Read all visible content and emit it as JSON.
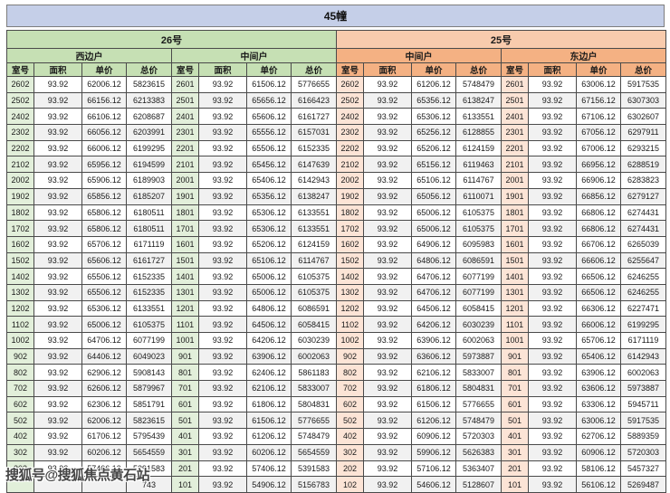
{
  "title": "45幢",
  "watermark": {
    "text": "搜狐号@搜狐焦点黄石站"
  },
  "table": {
    "buildings": [
      "26号",
      "25号"
    ],
    "unit_types": [
      "西边户",
      "中间户",
      "中间户",
      "东边户"
    ],
    "column_headers": [
      "室号",
      "面积",
      "单价",
      "总价"
    ],
    "rows": [
      [
        "2602",
        "93.92",
        "62006.12",
        "5823615",
        "2601",
        "93.92",
        "61506.12",
        "5776655",
        "2602",
        "93.92",
        "61206.12",
        "5748479",
        "2601",
        "93.92",
        "63006.12",
        "5917535"
      ],
      [
        "2502",
        "93.92",
        "66156.12",
        "6213383",
        "2501",
        "93.92",
        "65656.12",
        "6166423",
        "2502",
        "93.92",
        "65356.12",
        "6138247",
        "2501",
        "93.92",
        "67156.12",
        "6307303"
      ],
      [
        "2402",
        "93.92",
        "66106.12",
        "6208687",
        "2401",
        "93.92",
        "65606.12",
        "6161727",
        "2402",
        "93.92",
        "65306.12",
        "6133551",
        "2401",
        "93.92",
        "67106.12",
        "6302607"
      ],
      [
        "2302",
        "93.92",
        "66056.12",
        "6203991",
        "2301",
        "93.92",
        "65556.12",
        "6157031",
        "2302",
        "93.92",
        "65256.12",
        "6128855",
        "2301",
        "93.92",
        "67056.12",
        "6297911"
      ],
      [
        "2202",
        "93.92",
        "66006.12",
        "6199295",
        "2201",
        "93.92",
        "65506.12",
        "6152335",
        "2202",
        "93.92",
        "65206.12",
        "6124159",
        "2201",
        "93.92",
        "67006.12",
        "6293215"
      ],
      [
        "2102",
        "93.92",
        "65956.12",
        "6194599",
        "2101",
        "93.92",
        "65456.12",
        "6147639",
        "2102",
        "93.92",
        "65156.12",
        "6119463",
        "2101",
        "93.92",
        "66956.12",
        "6288519"
      ],
      [
        "2002",
        "93.92",
        "65906.12",
        "6189903",
        "2001",
        "93.92",
        "65406.12",
        "6142943",
        "2002",
        "93.92",
        "65106.12",
        "6114767",
        "2001",
        "93.92",
        "66906.12",
        "6283823"
      ],
      [
        "1902",
        "93.92",
        "65856.12",
        "6185207",
        "1901",
        "93.92",
        "65356.12",
        "6138247",
        "1902",
        "93.92",
        "65056.12",
        "6110071",
        "1901",
        "93.92",
        "66856.12",
        "6279127"
      ],
      [
        "1802",
        "93.92",
        "65806.12",
        "6180511",
        "1801",
        "93.92",
        "65306.12",
        "6133551",
        "1802",
        "93.92",
        "65006.12",
        "6105375",
        "1801",
        "93.92",
        "66806.12",
        "6274431"
      ],
      [
        "1702",
        "93.92",
        "65806.12",
        "6180511",
        "1701",
        "93.92",
        "65306.12",
        "6133551",
        "1702",
        "93.92",
        "65006.12",
        "6105375",
        "1701",
        "93.92",
        "66806.12",
        "6274431"
      ],
      [
        "1602",
        "93.92",
        "65706.12",
        "6171119",
        "1601",
        "93.92",
        "65206.12",
        "6124159",
        "1602",
        "93.92",
        "64906.12",
        "6095983",
        "1601",
        "93.92",
        "66706.12",
        "6265039"
      ],
      [
        "1502",
        "93.92",
        "65606.12",
        "6161727",
        "1501",
        "93.92",
        "65106.12",
        "6114767",
        "1502",
        "93.92",
        "64806.12",
        "6086591",
        "1501",
        "93.92",
        "66606.12",
        "6255647"
      ],
      [
        "1402",
        "93.92",
        "65506.12",
        "6152335",
        "1401",
        "93.92",
        "65006.12",
        "6105375",
        "1402",
        "93.92",
        "64706.12",
        "6077199",
        "1401",
        "93.92",
        "66506.12",
        "6246255"
      ],
      [
        "1302",
        "93.92",
        "65506.12",
        "6152335",
        "1301",
        "93.92",
        "65006.12",
        "6105375",
        "1302",
        "93.92",
        "64706.12",
        "6077199",
        "1301",
        "93.92",
        "66506.12",
        "6246255"
      ],
      [
        "1202",
        "93.92",
        "65306.12",
        "6133551",
        "1201",
        "93.92",
        "64806.12",
        "6086591",
        "1202",
        "93.92",
        "64506.12",
        "6058415",
        "1201",
        "93.92",
        "66306.12",
        "6227471"
      ],
      [
        "1102",
        "93.92",
        "65006.12",
        "6105375",
        "1101",
        "93.92",
        "64506.12",
        "6058415",
        "1102",
        "93.92",
        "64206.12",
        "6030239",
        "1101",
        "93.92",
        "66006.12",
        "6199295"
      ],
      [
        "1002",
        "93.92",
        "64706.12",
        "6077199",
        "1001",
        "93.92",
        "64206.12",
        "6030239",
        "1002",
        "93.92",
        "63906.12",
        "6002063",
        "1001",
        "93.92",
        "65706.12",
        "6171119"
      ],
      [
        "902",
        "93.92",
        "64406.12",
        "6049023",
        "901",
        "93.92",
        "63906.12",
        "6002063",
        "902",
        "93.92",
        "63606.12",
        "5973887",
        "901",
        "93.92",
        "65406.12",
        "6142943"
      ],
      [
        "802",
        "93.92",
        "62906.12",
        "5908143",
        "801",
        "93.92",
        "62406.12",
        "5861183",
        "802",
        "93.92",
        "62106.12",
        "5833007",
        "801",
        "93.92",
        "63906.12",
        "6002063"
      ],
      [
        "702",
        "93.92",
        "62606.12",
        "5879967",
        "701",
        "93.92",
        "62106.12",
        "5833007",
        "702",
        "93.92",
        "61806.12",
        "5804831",
        "701",
        "93.92",
        "63606.12",
        "5973887"
      ],
      [
        "602",
        "93.92",
        "62306.12",
        "5851791",
        "601",
        "93.92",
        "61806.12",
        "5804831",
        "602",
        "93.92",
        "61506.12",
        "5776655",
        "601",
        "93.92",
        "63306.12",
        "5945711"
      ],
      [
        "502",
        "93.92",
        "62006.12",
        "5823615",
        "501",
        "93.92",
        "61506.12",
        "5776655",
        "502",
        "93.92",
        "61206.12",
        "5748479",
        "501",
        "93.92",
        "63006.12",
        "5917535"
      ],
      [
        "402",
        "93.92",
        "61706.12",
        "5795439",
        "401",
        "93.92",
        "61206.12",
        "5748479",
        "402",
        "93.92",
        "60906.12",
        "5720303",
        "401",
        "93.92",
        "62706.12",
        "5889359"
      ],
      [
        "302",
        "93.92",
        "60206.12",
        "5654559",
        "301",
        "93.92",
        "60206.12",
        "5654559",
        "302",
        "93.92",
        "59906.12",
        "5626383",
        "301",
        "93.92",
        "60906.12",
        "5720303"
      ],
      [
        "202",
        "93.92",
        "57406.12",
        "5391583",
        "201",
        "93.92",
        "57406.12",
        "5391583",
        "202",
        "93.92",
        "57106.12",
        "5363407",
        "201",
        "93.92",
        "58106.12",
        "5457327"
      ],
      [
        "",
        "",
        "",
        "743",
        "101",
        "93.92",
        "54906.12",
        "5156783",
        "102",
        "93.92",
        "54606.12",
        "5128607",
        "101",
        "93.92",
        "56106.12",
        "5269487"
      ]
    ]
  }
}
